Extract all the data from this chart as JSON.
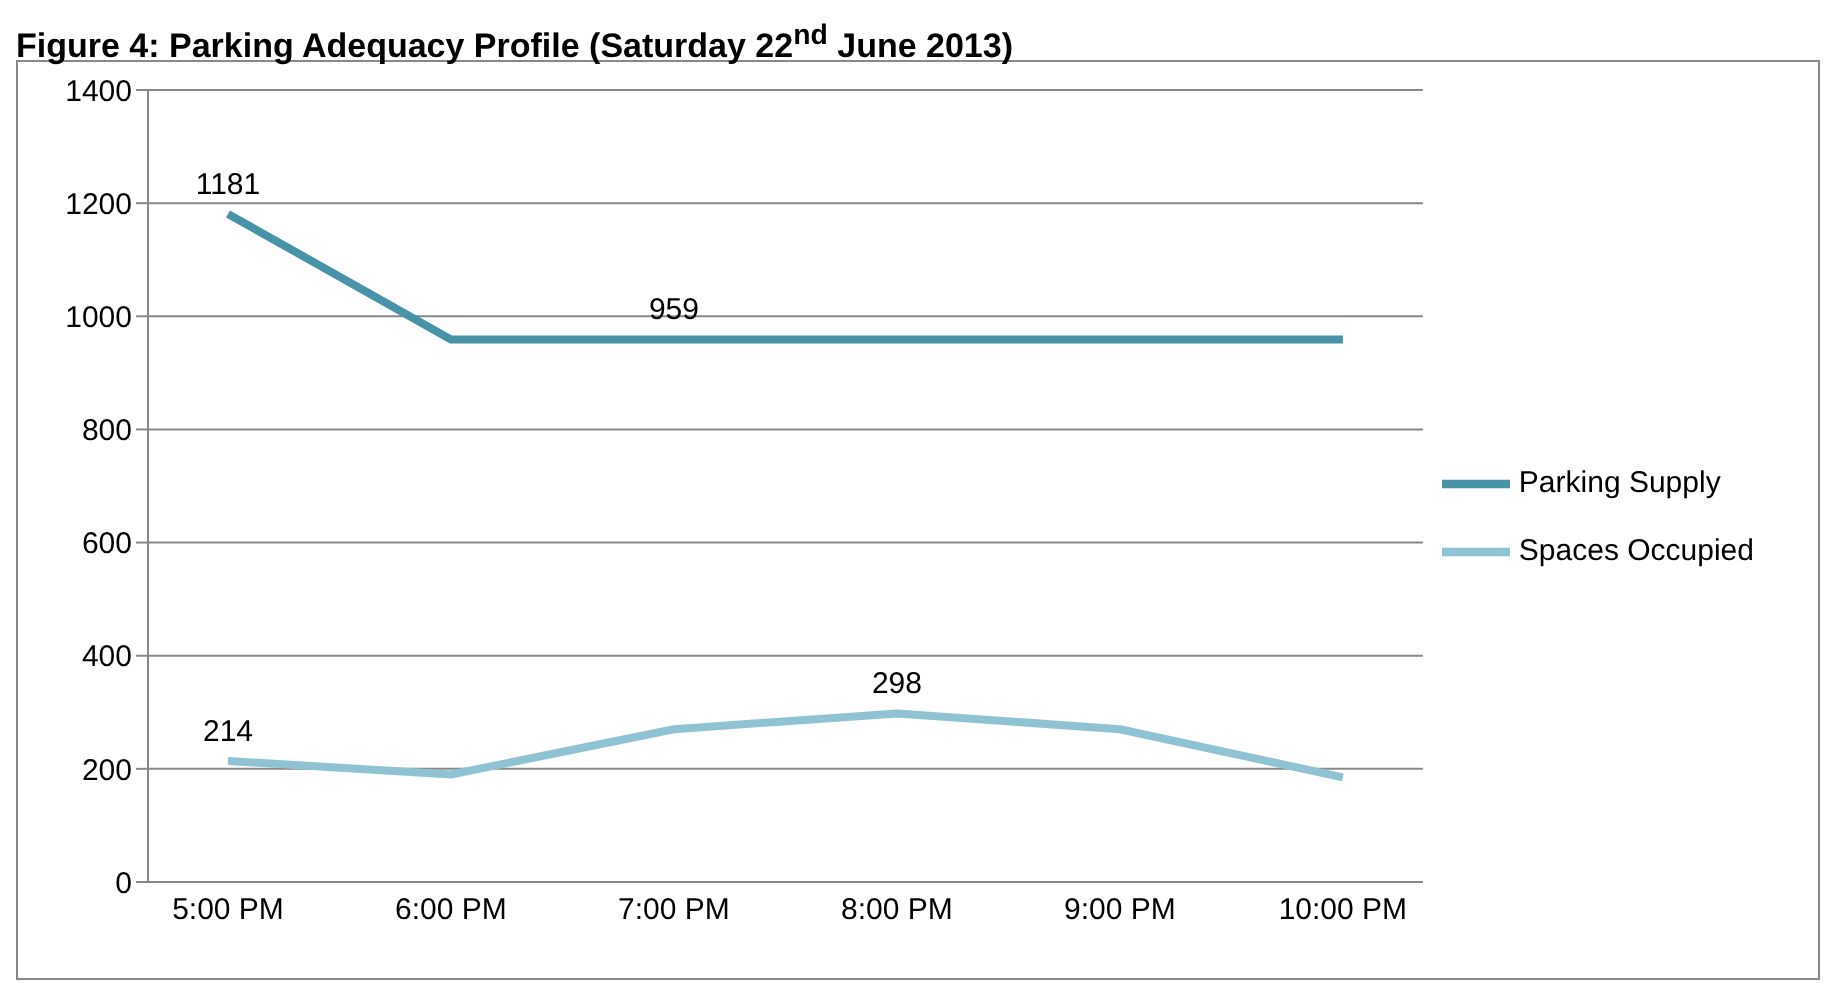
{
  "chart_data": {
    "type": "line",
    "title": "Figure 4: Parking Adequacy Profile (Saturday 22$^{nd}$ June 2013)",
    "categories": [
      "5:00 PM",
      "6:00 PM",
      "7:00 PM",
      "8:00 PM",
      "9:00 PM",
      "10:00 PM"
    ],
    "series": [
      {
        "name": "Parking Supply",
        "color": "#4993a8",
        "values": [
          1181,
          959,
          959,
          959,
          959,
          959
        ],
        "value_labels": [
          "1181",
          null,
          "959",
          null,
          null,
          null
        ]
      },
      {
        "name": "Spaces Occupied",
        "color": "#8fc3d3",
        "values": [
          214,
          190,
          270,
          298,
          270,
          185
        ],
        "value_labels": [
          "214",
          null,
          null,
          "298",
          null,
          null
        ]
      }
    ],
    "ylim": [
      0,
      1400
    ],
    "yticks": [
      0,
      200,
      400,
      600,
      800,
      1000,
      1200,
      1400
    ],
    "grid": "y",
    "legend": "right",
    "marker": "none",
    "line_style": "solid"
  }
}
